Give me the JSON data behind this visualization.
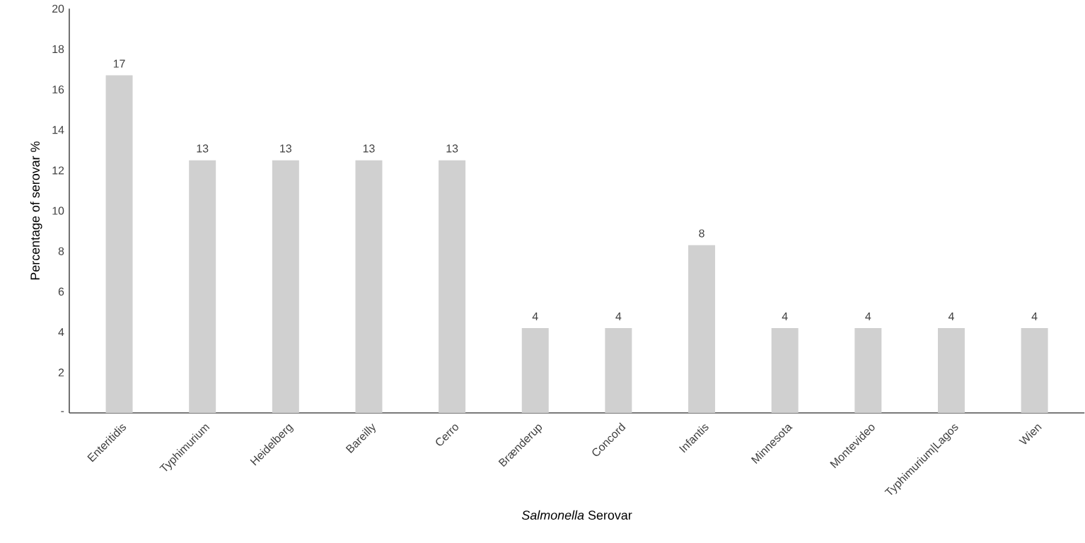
{
  "chart_data": {
    "type": "bar",
    "xlabel": "*Salmonella* Serovar",
    "ylabel": "Percentage of serovar %",
    "categories": [
      "Enteritidis",
      "Typhimurium",
      "Heidelberg",
      "Bareilly",
      "Cerro",
      "Brænderup",
      "Concord",
      "Infantis",
      "Minnesota",
      "Montevideo",
      "Typhimurium|Lagos",
      "Wien"
    ],
    "values": [
      16.7,
      12.5,
      12.5,
      12.5,
      12.5,
      4.2,
      4.2,
      8.3,
      4.2,
      4.2,
      4.2,
      4.2
    ],
    "value_labels": [
      "17",
      "13",
      "13",
      "13",
      "13",
      "4",
      "4",
      "8",
      "4",
      "4",
      "4",
      "4"
    ],
    "color": "#d0d0d0",
    "ylim": [
      0,
      20
    ],
    "yticks": [
      {
        "value": 0,
        "label": "-"
      },
      2,
      4,
      6,
      8,
      10,
      12,
      14,
      16,
      18,
      20
    ],
    "grid": false
  }
}
